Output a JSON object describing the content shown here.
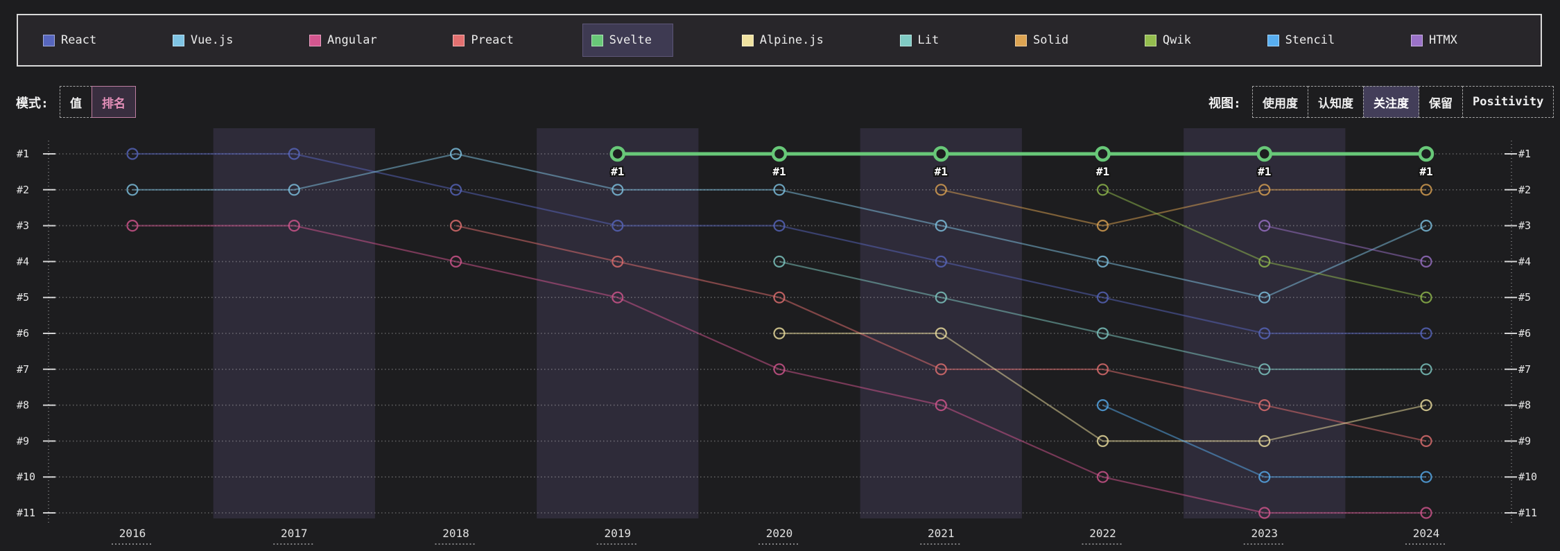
{
  "legend": {
    "items": [
      {
        "label": "React",
        "color": "#5766be",
        "selected": false
      },
      {
        "label": "Vue.js",
        "color": "#7fc4e4",
        "selected": false
      },
      {
        "label": "Angular",
        "color": "#d4568f",
        "selected": false
      },
      {
        "label": "Preact",
        "color": "#e37070",
        "selected": false
      },
      {
        "label": "Svelte",
        "color": "#68c878",
        "selected": true
      },
      {
        "label": "Alpine.js",
        "color": "#f0e2a0",
        "selected": false
      },
      {
        "label": "Lit",
        "color": "#80cbc4",
        "selected": false
      },
      {
        "label": "Solid",
        "color": "#dda452",
        "selected": false
      },
      {
        "label": "Qwik",
        "color": "#94bd4e",
        "selected": false
      },
      {
        "label": "Stencil",
        "color": "#58aef0",
        "selected": false
      },
      {
        "label": "HTMX",
        "color": "#9b72c8",
        "selected": false
      }
    ]
  },
  "controls": {
    "mode_label": "模式:",
    "modes": [
      {
        "label": "值",
        "active": false
      },
      {
        "label": "排名",
        "active": true
      }
    ],
    "view_label": "视图:",
    "views": [
      {
        "label": "使用度",
        "active": false
      },
      {
        "label": "认知度",
        "active": false
      },
      {
        "label": "关注度",
        "active": true
      },
      {
        "label": "保留",
        "active": false
      },
      {
        "label": "Positivity",
        "active": false
      }
    ]
  },
  "chart_data": {
    "type": "line",
    "variant": "bump-ranking",
    "x": [
      2016,
      2017,
      2018,
      2019,
      2020,
      2021,
      2022,
      2023,
      2024
    ],
    "rank_ticks": [
      "#1",
      "#2",
      "#3",
      "#4",
      "#5",
      "#6",
      "#7",
      "#8",
      "#9",
      "#10",
      "#11"
    ],
    "ylim": [
      1,
      11
    ],
    "grid": "dotted-horizontal",
    "legend_position": "top",
    "banded_years": [
      2017,
      2019,
      2021,
      2023
    ],
    "highlight_series": "Svelte",
    "highlight_point_label": "#1",
    "series": [
      {
        "name": "React",
        "color": "#5766be",
        "ranks": [
          1,
          1,
          2,
          3,
          3,
          4,
          5,
          6,
          6
        ]
      },
      {
        "name": "Vue.js",
        "color": "#7fc4e4",
        "ranks": [
          2,
          2,
          1,
          2,
          2,
          3,
          4,
          5,
          3
        ]
      },
      {
        "name": "Angular",
        "color": "#d4568f",
        "ranks": [
          3,
          3,
          4,
          5,
          7,
          8,
          10,
          11,
          11
        ]
      },
      {
        "name": "Preact",
        "color": "#e37070",
        "ranks": [
          null,
          null,
          3,
          4,
          5,
          7,
          7,
          8,
          9
        ]
      },
      {
        "name": "Svelte",
        "color": "#68c878",
        "ranks": [
          null,
          null,
          null,
          1,
          1,
          1,
          1,
          1,
          1
        ]
      },
      {
        "name": "Alpine.js",
        "color": "#f0e2a0",
        "ranks": [
          null,
          null,
          null,
          null,
          6,
          6,
          9,
          9,
          8
        ]
      },
      {
        "name": "Lit",
        "color": "#80cbc4",
        "ranks": [
          null,
          null,
          null,
          null,
          4,
          5,
          6,
          7,
          7
        ]
      },
      {
        "name": "Solid",
        "color": "#dda452",
        "ranks": [
          null,
          null,
          null,
          null,
          null,
          2,
          3,
          2,
          2
        ]
      },
      {
        "name": "Qwik",
        "color": "#94bd4e",
        "ranks": [
          null,
          null,
          null,
          null,
          null,
          null,
          2,
          4,
          5
        ]
      },
      {
        "name": "Stencil",
        "color": "#58aef0",
        "ranks": [
          null,
          null,
          null,
          null,
          null,
          null,
          8,
          10,
          10
        ]
      },
      {
        "name": "HTMX",
        "color": "#9b72c8",
        "ranks": [
          null,
          null,
          null,
          null,
          null,
          null,
          null,
          3,
          4
        ]
      }
    ],
    "colors": {
      "page_bg": "#1d1d1f",
      "band_bg": "#2e2b39",
      "grid": "rgba(255,255,255,0.30)"
    }
  }
}
